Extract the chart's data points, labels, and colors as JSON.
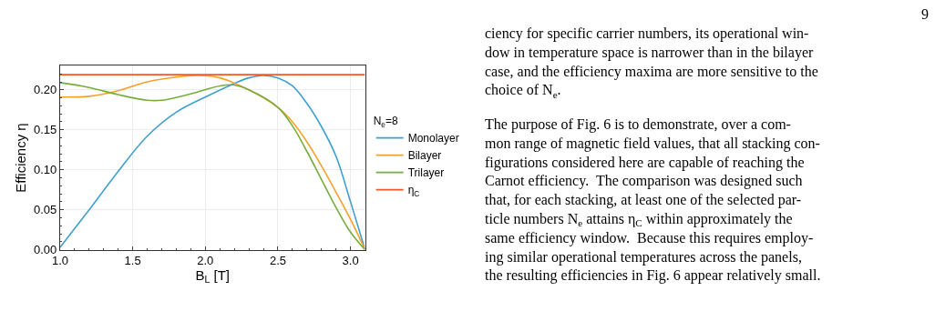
{
  "chart_data": {
    "type": "line",
    "xlabel": "B$_{L}$ [T]",
    "ylabel": "Efficiency η",
    "legend_title": "N$_{e}$=8",
    "xlim": [
      1.0,
      3.1
    ],
    "xticks": [
      {
        "value": 1.0,
        "label": "1.0"
      },
      1.5,
      {
        "value": 2.0,
        "label": "2.0"
      },
      2.5,
      {
        "value": 3.0,
        "label": "3.0"
      }
    ],
    "ylim": [
      0,
      0.23
    ],
    "yticks": [
      {
        "value": 0,
        "label": "0.00"
      },
      0.05,
      {
        "value": 0.1,
        "label": "0.10"
      },
      0.15,
      {
        "value": 0.2,
        "label": "0.20"
      }
    ],
    "grid": true,
    "legend": "right",
    "marker": "none",
    "line_style": "solid",
    "series": [
      {
        "name": "Monolayer",
        "color": "#3f9fd0",
        "x": [
          1.0,
          1.2,
          1.4,
          1.6,
          1.8,
          2.0,
          2.2,
          2.3,
          2.4,
          2.5,
          2.6,
          2.7,
          2.8,
          2.9,
          3.0,
          3.1
        ],
        "values": [
          0.003,
          0.05,
          0.098,
          0.142,
          0.172,
          0.191,
          0.208,
          0.215,
          0.218,
          0.215,
          0.205,
          0.183,
          0.154,
          0.117,
          0.06,
          0.0
        ]
      },
      {
        "name": "Bilayer",
        "color": "#f5a22d",
        "x": [
          1.0,
          1.2,
          1.4,
          1.6,
          1.8,
          1.95,
          2.1,
          2.3,
          2.5,
          2.6,
          2.7,
          2.8,
          2.9,
          3.0,
          3.1
        ],
        "values": [
          0.191,
          0.192,
          0.199,
          0.21,
          0.216,
          0.218,
          0.215,
          0.2,
          0.178,
          0.16,
          0.135,
          0.105,
          0.072,
          0.038,
          0.0
        ]
      },
      {
        "name": "Trilayer",
        "color": "#77ad3c",
        "x": [
          1.0,
          1.2,
          1.4,
          1.6,
          1.7,
          1.9,
          2.1,
          2.2,
          2.3,
          2.5,
          2.6,
          2.7,
          2.8,
          2.9,
          3.0,
          3.1
        ],
        "values": [
          0.209,
          0.203,
          0.194,
          0.187,
          0.187,
          0.195,
          0.205,
          0.206,
          0.2,
          0.178,
          0.155,
          0.123,
          0.088,
          0.053,
          0.022,
          0.0
        ]
      },
      {
        "name": "η$_{C}$",
        "color": "#f05a28",
        "x": [
          1.0,
          3.1
        ],
        "values": [
          0.219,
          0.219
        ]
      }
    ],
    "annotations": [
      "9",
      "ciency for specific carrier numbers, its operational win-\ndow in temperature space is narrower than in the bilayer\ncase, and the efficiency maxima are more sensitive to the\nchoice of N$_{e}$.",
      "The purpose of Fig. 6 is to demonstrate, over a com-\nmon range of magnetic field values, that all stacking con-\nfigurations considered here are capable of reaching the\nCarnot efficiency.  The comparison was designed such\nthat, for each stacking, at least one of the selected par-\nticle numbers N$_{e}$ attains η$_{C}$ within approximately the\nsame efficiency window.  Because this requires employ-\ning similar operational temperatures across the panels,\nthe resulting efficiencies in Fig. 6 appear relatively small."
    ]
  }
}
